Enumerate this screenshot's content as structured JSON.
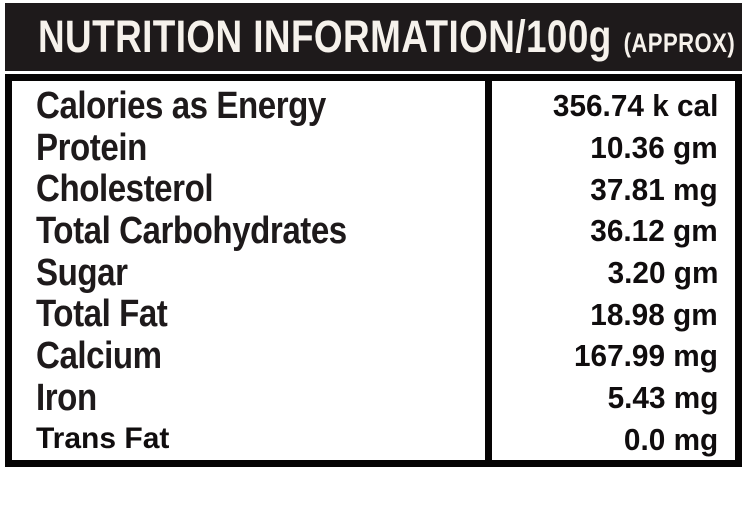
{
  "header": {
    "title": "NUTRITION INFORMATION/100g",
    "approx_note": "(APPROX)"
  },
  "table": {
    "rows": [
      {
        "label": "Calories as Energy",
        "value": "356.74 k cal"
      },
      {
        "label": "Protein",
        "value": "10.36 gm"
      },
      {
        "label": "Cholesterol",
        "value": "37.81 mg"
      },
      {
        "label": "Total Carbohydrates",
        "value": "36.12 gm"
      },
      {
        "label": "Sugar",
        "value": "3.20 gm"
      },
      {
        "label": "Total Fat",
        "value": "18.98 gm"
      },
      {
        "label": "Calcium",
        "value": "167.99 mg"
      },
      {
        "label": "Iron",
        "value": "5.43 mg"
      },
      {
        "label": "Trans Fat",
        "value": "0.0 mg"
      }
    ]
  },
  "colors": {
    "header_background": "#1e1a1b",
    "header_text": "#f6f2ec",
    "border": "#060404",
    "label_text": "#1e1a1b",
    "value_text": "#100d0e",
    "page_background": "#ffffff"
  }
}
